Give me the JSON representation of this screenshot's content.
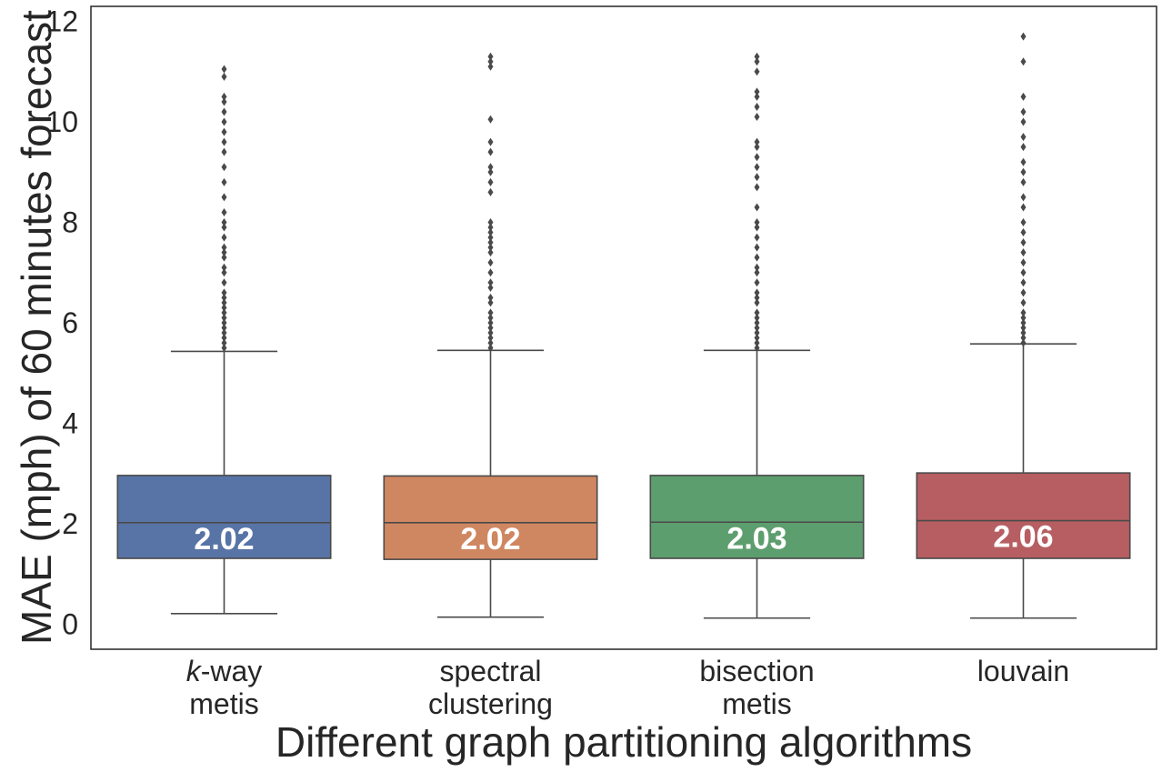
{
  "chart_data": {
    "type": "box",
    "xlabel": "Different graph partitioning algorithms",
    "ylabel": "MAE (mph) of 60 minutes forecast",
    "ylim": [
      -0.5,
      12.3
    ],
    "yticks": [
      0,
      2,
      4,
      6,
      8,
      10,
      12
    ],
    "grid": false,
    "categories": [
      {
        "lines": [
          {
            "pre": "",
            "italic": "k",
            "post": "-way"
          },
          {
            "pre": "metis",
            "italic": "",
            "post": ""
          }
        ]
      },
      {
        "lines": [
          {
            "pre": "spectral",
            "italic": "",
            "post": ""
          },
          {
            "pre": "clustering",
            "italic": "",
            "post": ""
          }
        ]
      },
      {
        "lines": [
          {
            "pre": "bisection",
            "italic": "",
            "post": ""
          },
          {
            "pre": "metis",
            "italic": "",
            "post": ""
          }
        ]
      },
      {
        "lines": [
          {
            "pre": "louvain",
            "italic": "",
            "post": ""
          }
        ]
      }
    ],
    "boxes": [
      {
        "color": "#5874a6",
        "q1": 1.31,
        "median": 2.02,
        "q3": 2.96,
        "whisker_low": 0.21,
        "whisker_high": 5.43,
        "median_label": "2.02",
        "outliers": [
          5.5,
          5.6,
          5.7,
          5.8,
          5.9,
          6.0,
          6.1,
          6.2,
          6.3,
          6.4,
          6.5,
          6.6,
          6.8,
          7.0,
          7.1,
          7.3,
          7.4,
          7.5,
          7.7,
          7.9,
          8.0,
          8.2,
          8.5,
          8.8,
          9.1,
          9.4,
          9.6,
          9.8,
          10.0,
          10.2,
          10.4,
          10.5,
          10.9,
          11.05
        ]
      },
      {
        "color": "#cf8762",
        "q1": 1.29,
        "median": 2.02,
        "q3": 2.95,
        "whisker_low": 0.14,
        "whisker_high": 5.45,
        "median_label": "2.02",
        "outliers": [
          5.5,
          5.6,
          5.7,
          5.8,
          5.9,
          6.0,
          6.1,
          6.2,
          6.4,
          6.5,
          6.7,
          6.8,
          7.0,
          7.2,
          7.4,
          7.5,
          7.6,
          7.7,
          7.8,
          7.9,
          8.0,
          8.6,
          8.8,
          9.0,
          9.1,
          9.4,
          9.6,
          10.05,
          11.1,
          11.2,
          11.3
        ]
      },
      {
        "color": "#5d9e6e",
        "q1": 1.31,
        "median": 2.03,
        "q3": 2.96,
        "whisker_low": 0.12,
        "whisker_high": 5.45,
        "median_label": "2.03",
        "outliers": [
          5.5,
          5.6,
          5.7,
          5.8,
          5.9,
          6.0,
          6.1,
          6.2,
          6.4,
          6.5,
          6.6,
          6.8,
          7.0,
          7.1,
          7.3,
          7.5,
          7.7,
          7.9,
          8.0,
          8.3,
          8.7,
          8.9,
          9.1,
          9.3,
          9.5,
          9.6,
          10.1,
          10.3,
          10.5,
          10.6,
          11.0,
          11.2,
          11.3
        ]
      },
      {
        "color": "#b75e62",
        "q1": 1.31,
        "median": 2.06,
        "q3": 3.01,
        "whisker_low": 0.12,
        "whisker_high": 5.58,
        "median_label": "2.06",
        "outliers": [
          5.6,
          5.7,
          5.8,
          5.9,
          6.0,
          6.1,
          6.2,
          6.4,
          6.6,
          6.8,
          7.0,
          7.2,
          7.4,
          7.6,
          7.8,
          8.0,
          8.3,
          8.5,
          8.8,
          9.0,
          9.2,
          9.5,
          9.7,
          10.0,
          10.2,
          10.5,
          11.2,
          11.7
        ]
      }
    ]
  }
}
